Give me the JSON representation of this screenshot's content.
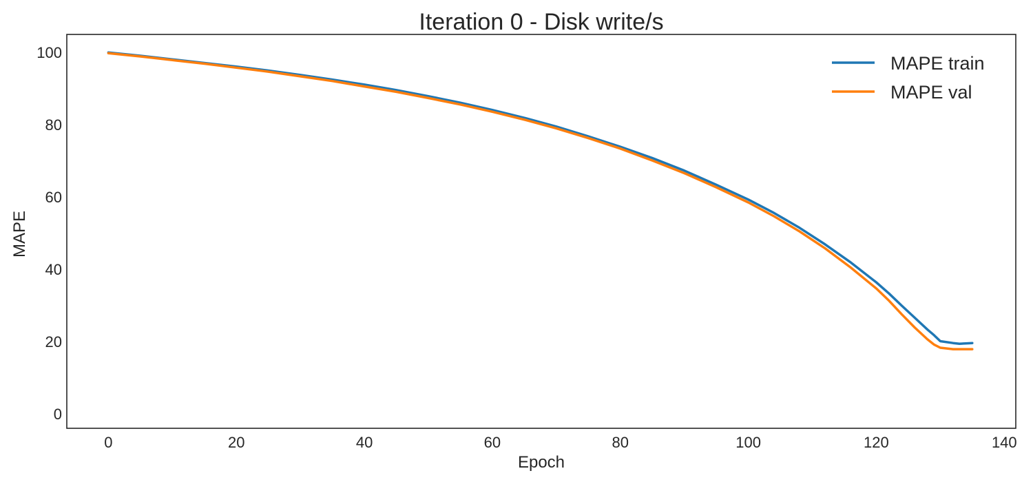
{
  "chart_data": {
    "type": "line",
    "title": "Iteration 0 - Disk write/s",
    "xlabel": "Epoch",
    "ylabel": "MAPE",
    "xlim": [
      -6.5,
      141.8
    ],
    "ylim": [
      -4,
      105
    ],
    "xticks": [
      0,
      20,
      40,
      60,
      80,
      100,
      120,
      140
    ],
    "yticks": [
      0,
      20,
      40,
      60,
      80,
      100
    ],
    "grid": false,
    "legend_position": "top-right",
    "colors": {
      "train": "#1f77b4",
      "val": "#ff7f0e"
    },
    "series": [
      {
        "name": "MAPE train",
        "x": [
          0,
          5,
          10,
          15,
          20,
          25,
          30,
          35,
          40,
          45,
          50,
          55,
          60,
          65,
          70,
          75,
          80,
          85,
          90,
          95,
          100,
          104,
          108,
          112,
          116,
          120,
          122,
          124,
          126,
          128,
          129,
          130,
          132,
          133,
          135
        ],
        "y": [
          100,
          99.1,
          98.1,
          97.1,
          96.1,
          95,
          93.8,
          92.5,
          91.1,
          89.6,
          87.9,
          86.1,
          84.1,
          81.9,
          79.5,
          76.8,
          73.9,
          70.8,
          67.3,
          63.4,
          59.3,
          55.6,
          51.5,
          46.9,
          41.9,
          36.4,
          33.3,
          29.9,
          26.6,
          23.3,
          21.8,
          20.1,
          19.6,
          19.4,
          19.6
        ]
      },
      {
        "name": "MAPE val",
        "x": [
          0,
          5,
          10,
          15,
          20,
          25,
          30,
          35,
          40,
          45,
          50,
          55,
          60,
          65,
          70,
          75,
          80,
          85,
          90,
          95,
          100,
          104,
          108,
          112,
          116,
          120,
          122,
          124,
          126,
          128,
          129,
          130,
          132,
          133,
          135
        ],
        "y": [
          99.8,
          98.9,
          97.9,
          96.9,
          95.8,
          94.7,
          93.4,
          92.1,
          90.6,
          89.1,
          87.4,
          85.6,
          83.6,
          81.4,
          79,
          76.3,
          73.4,
          70.1,
          66.6,
          62.7,
          58.5,
          54.7,
          50.5,
          45.8,
          40.5,
          34.7,
          31.3,
          27.5,
          23.9,
          20.6,
          19.2,
          18.3,
          17.9,
          17.9,
          17.9
        ]
      }
    ]
  }
}
